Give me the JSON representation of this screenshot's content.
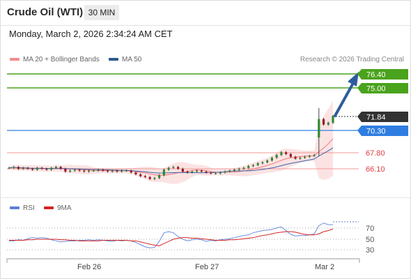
{
  "header": {
    "title": "Crude Oil (WTI)",
    "timeframe": "30 MIN"
  },
  "datetime": "Monday, March 2, 2026 2:34:24 AM CET",
  "legend": {
    "items": [
      {
        "label": "MA 20 + Bollinger Bands",
        "color": "#f28c8c"
      },
      {
        "label": "MA 50",
        "color": "#2e5b8c"
      }
    ],
    "credit": "Research © 2026 Trading Central"
  },
  "levels": [
    {
      "label": "76.40",
      "kind": "target",
      "color": "#4aa31c"
    },
    {
      "label": "75.00",
      "kind": "target",
      "color": "#4aa31c"
    },
    {
      "label": "71.84",
      "kind": "last",
      "color": "#333333"
    },
    {
      "label": "70.30",
      "kind": "pivot",
      "color": "#2f7de1"
    },
    {
      "label": "67.80",
      "kind": "support",
      "color": "#e03b3b"
    },
    {
      "label": "66.10",
      "kind": "support",
      "color": "#e03b3b"
    }
  ],
  "rsi_panel": {
    "legend": [
      {
        "label": "RSI",
        "color": "#5b7fd6"
      },
      {
        "label": "9MA",
        "color": "#d62222"
      }
    ],
    "levels": [
      "70",
      "50",
      "30"
    ]
  },
  "x_axis": {
    "labels": [
      "Feb 26",
      "Feb 27",
      "Mar 2"
    ]
  },
  "chart_data": {
    "type": "candlestick",
    "price_range": [
      65.5,
      77.0
    ],
    "last_price": 71.84,
    "resistances": [
      76.4,
      75.0
    ],
    "pivot": 70.3,
    "supports": [
      67.8,
      66.1
    ],
    "close_series": [
      66.2,
      66.3,
      66.1,
      66.2,
      66.1,
      66.0,
      66.2,
      66.1,
      66.0,
      66.2,
      66.3,
      66.1,
      65.8,
      65.9,
      66.0,
      65.9,
      65.8,
      65.9,
      65.9,
      66.0,
      65.9,
      65.8,
      65.9,
      65.8,
      65.9,
      65.9,
      65.7,
      65.5,
      65.3,
      65.2,
      65.0,
      65.1,
      65.4,
      66.0,
      66.2,
      66.3,
      66.1,
      65.8,
      65.7,
      65.8,
      65.9,
      65.8,
      65.7,
      65.6,
      65.6,
      65.7,
      65.8,
      65.9,
      66.0,
      66.1,
      66.2,
      66.4,
      66.5,
      66.7,
      66.8,
      67.0,
      67.3,
      67.6,
      67.9,
      67.7,
      67.4,
      67.2,
      67.3,
      67.4,
      67.5,
      67.6,
      71.5,
      70.9,
      71.1,
      71.84
    ],
    "rsi_series": [
      47,
      47,
      49,
      48,
      51,
      53,
      52,
      53,
      52,
      49,
      47,
      45,
      46,
      47,
      47,
      48,
      48,
      49,
      48,
      49,
      48,
      47,
      46,
      48,
      47,
      48,
      47,
      44,
      40,
      36,
      34,
      35,
      46,
      62,
      64,
      62,
      55,
      50,
      47,
      49,
      50,
      49,
      46,
      48,
      47,
      49,
      50,
      51,
      53,
      55,
      57,
      58,
      62,
      64,
      66,
      67,
      68,
      71,
      73,
      66,
      59,
      56,
      57,
      57,
      58,
      60,
      75,
      80,
      77,
      77
    ],
    "rsi_ma_series": [
      48,
      48,
      48,
      48,
      49,
      49,
      50,
      50,
      50,
      50,
      50,
      49,
      49,
      48,
      48,
      47,
      47,
      47,
      47,
      47,
      48,
      48,
      48,
      48,
      48,
      48,
      47,
      47,
      45,
      43,
      41,
      39,
      38,
      42,
      46,
      50,
      52,
      53,
      53,
      52,
      52,
      51,
      50,
      49,
      48,
      48,
      48,
      49,
      49,
      50,
      51,
      52,
      53,
      55,
      57,
      58,
      60,
      62,
      63,
      64,
      64,
      63,
      61,
      59,
      58,
      58,
      60,
      64,
      66,
      69
    ],
    "rsi_range": [
      0,
      100
    ]
  }
}
